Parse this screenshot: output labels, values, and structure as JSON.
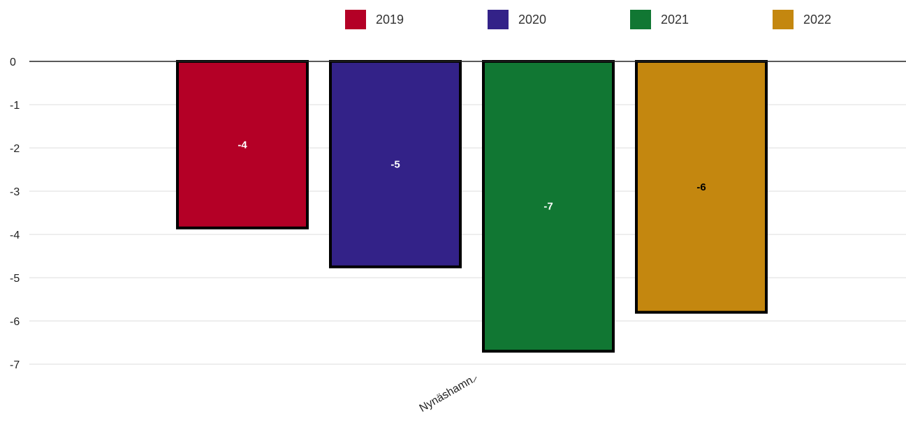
{
  "chart_data": {
    "type": "bar",
    "title": "",
    "xlabel": "",
    "ylabel": "",
    "categories": [
      "Nynäshamn"
    ],
    "series": [
      {
        "name": "2019",
        "values": [
          -3.85
        ],
        "label": "-4",
        "color": "#b40026",
        "label_color": "#ffffff"
      },
      {
        "name": "2020",
        "values": [
          -4.75
        ],
        "label": "-5",
        "color": "#332288",
        "label_color": "#ffffff"
      },
      {
        "name": "2021",
        "values": [
          -6.7
        ],
        "label": "-7",
        "color": "#117733",
        "label_color": "#ffffff"
      },
      {
        "name": "2022",
        "values": [
          -5.8
        ],
        "label": "-6",
        "color": "#c4870f",
        "label_color": "#000000"
      }
    ],
    "ylim": [
      -7,
      0
    ],
    "yticks": [
      {
        "value": 0,
        "label": "0"
      },
      {
        "value": -1,
        "label": "-1"
      },
      {
        "value": -2,
        "label": "-2"
      },
      {
        "value": -3,
        "label": "-3"
      },
      {
        "value": -4,
        "label": "-4"
      },
      {
        "value": -5,
        "label": "-5"
      },
      {
        "value": -6,
        "label": "-6"
      },
      {
        "value": -7,
        "label": "-7"
      }
    ],
    "grid": true,
    "legend": "top-center",
    "bar_border_color": "#000000",
    "gridline_color": "#dddddd",
    "zero_line_color": "#222222"
  }
}
